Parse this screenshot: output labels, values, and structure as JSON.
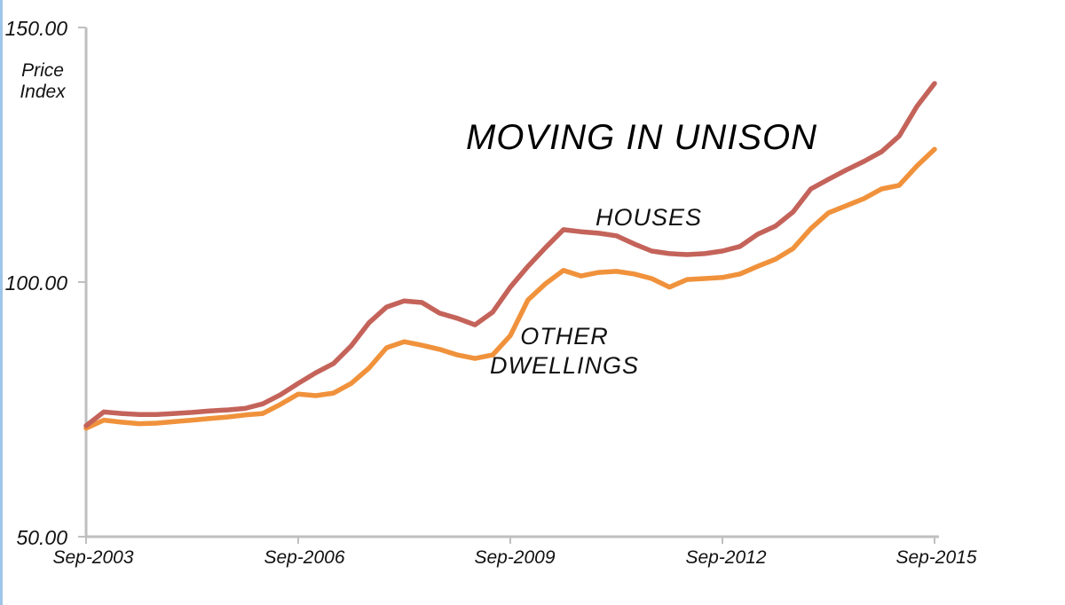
{
  "page": {
    "background": "#ffffff",
    "left_border_color": "#9fc5e8"
  },
  "chart": {
    "title": "MOVING IN UNISON",
    "y_axis": {
      "title_line1": "Price",
      "title_line2": "Index",
      "tick_labels": [
        "150.00",
        "100.00",
        "50.00"
      ]
    },
    "x_axis": {
      "tick_labels": [
        "Sep-2003",
        "Sep-2006",
        "Sep-2009",
        "Sep-2012",
        "Sep-2015"
      ]
    },
    "series_labels": {
      "houses": "HOUSES",
      "other_line1": "OTHER",
      "other_line2": "DWELLINGS"
    },
    "colors": {
      "houses_line": "#c4635a",
      "other_dwellings_line": "#f0923c",
      "axis": "#bfbfbf",
      "text": "#111111"
    }
  },
  "chart_data": {
    "type": "line",
    "title": "MOVING IN UNISON",
    "xlabel": "",
    "ylabel": "Price Index",
    "ylim": [
      50,
      150
    ],
    "y_ticks": [
      150,
      100,
      50
    ],
    "x_tick_labels": [
      "Sep-2003",
      "Sep-2006",
      "Sep-2009",
      "Sep-2012",
      "Sep-2015"
    ],
    "grid": false,
    "legend_position": "inline-labels",
    "categories": [
      "Sep-2003",
      "Dec-2003",
      "Mar-2004",
      "Jun-2004",
      "Sep-2004",
      "Dec-2004",
      "Mar-2005",
      "Jun-2005",
      "Sep-2005",
      "Dec-2005",
      "Mar-2006",
      "Jun-2006",
      "Sep-2006",
      "Dec-2006",
      "Mar-2007",
      "Jun-2007",
      "Sep-2007",
      "Dec-2007",
      "Mar-2008",
      "Jun-2008",
      "Sep-2008",
      "Dec-2008",
      "Mar-2009",
      "Jun-2009",
      "Sep-2009",
      "Dec-2009",
      "Mar-2010",
      "Jun-2010",
      "Sep-2010",
      "Dec-2010",
      "Mar-2011",
      "Jun-2011",
      "Sep-2011",
      "Dec-2011",
      "Mar-2012",
      "Jun-2012",
      "Sep-2012",
      "Dec-2012",
      "Mar-2013",
      "Jun-2013",
      "Sep-2013",
      "Dec-2013",
      "Mar-2014",
      "Jun-2014",
      "Sep-2014",
      "Dec-2014",
      "Mar-2015",
      "Jun-2015",
      "Sep-2015"
    ],
    "series": [
      {
        "name": "HOUSES",
        "color": "#c4635a",
        "values": [
          71.8,
          74.5,
          74.2,
          74.0,
          74.0,
          74.2,
          74.4,
          74.7,
          74.9,
          75.2,
          76.1,
          77.9,
          80.1,
          82.2,
          84.0,
          87.5,
          92.0,
          95.1,
          96.3,
          96.0,
          93.9,
          92.9,
          91.6,
          94.1,
          99.0,
          103.1,
          106.8,
          110.3,
          109.9,
          109.6,
          109.1,
          107.5,
          106.1,
          105.6,
          105.4,
          105.6,
          106.1,
          107.0,
          109.4,
          111.0,
          113.8,
          118.3,
          120.2,
          122.0,
          123.7,
          125.6,
          128.7,
          134.5,
          139.0
        ]
      },
      {
        "name": "OTHER DWELLINGS",
        "color": "#f0923c",
        "values": [
          71.3,
          72.9,
          72.5,
          72.2,
          72.3,
          72.6,
          72.9,
          73.2,
          73.5,
          73.9,
          74.2,
          76.0,
          78.0,
          77.7,
          78.2,
          80.1,
          83.1,
          87.1,
          88.3,
          87.6,
          86.8,
          85.7,
          85.0,
          85.7,
          89.5,
          96.5,
          99.7,
          102.3,
          101.2,
          101.9,
          102.1,
          101.6,
          100.7,
          99.0,
          100.5,
          100.7,
          100.9,
          101.6,
          103.1,
          104.5,
          106.6,
          110.5,
          113.6,
          115.0,
          116.4,
          118.3,
          119.0,
          122.8,
          126.1
        ]
      }
    ]
  }
}
